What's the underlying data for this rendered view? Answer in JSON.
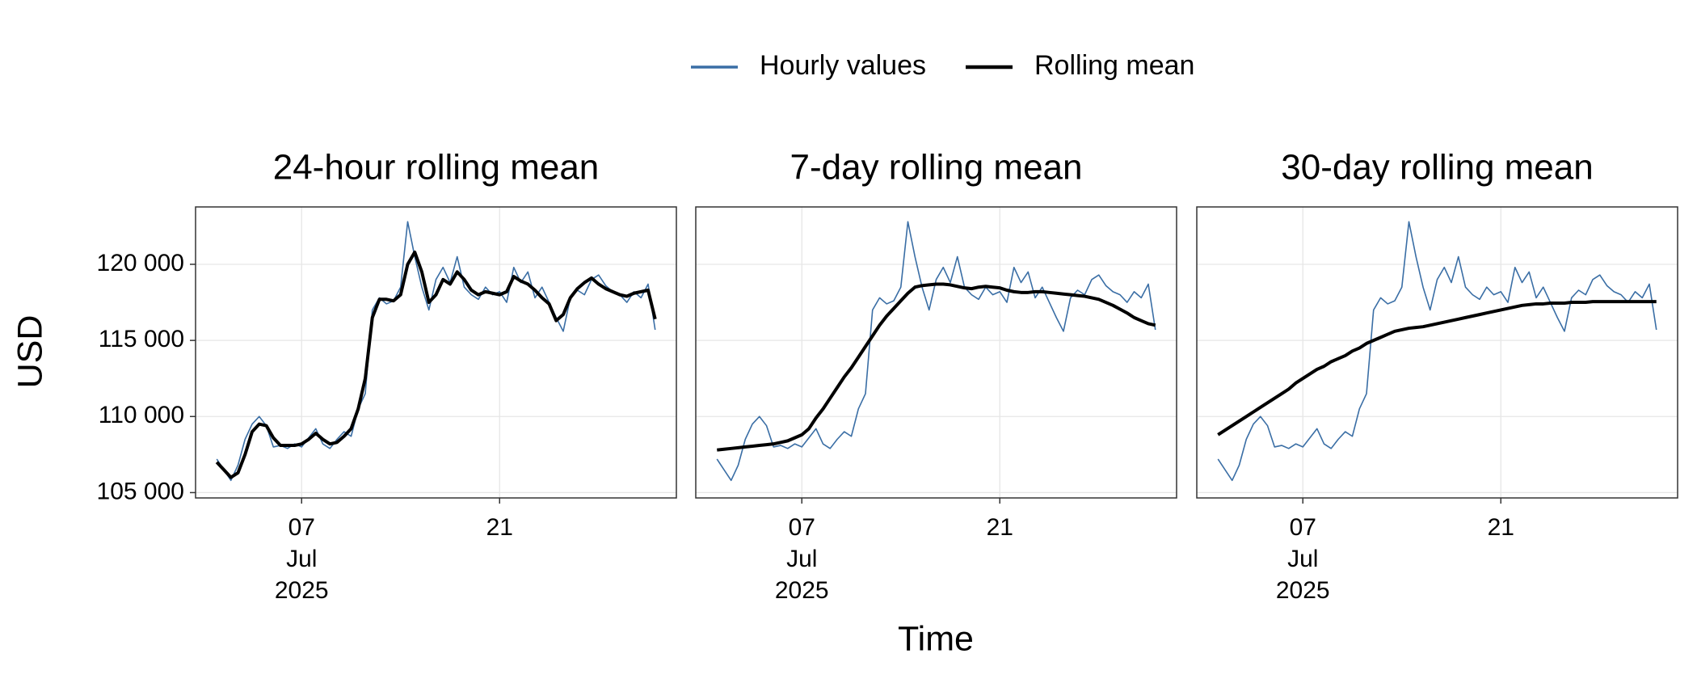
{
  "legend_position": "top",
  "x_label": "Time",
  "y_label": "USD",
  "chart_data": [
    {
      "type": "line",
      "title": "24-hour rolling mean",
      "grid": true,
      "x": [
        1,
        1.5,
        2,
        2.5,
        3,
        3.5,
        4,
        4.5,
        5,
        5.5,
        6,
        6.5,
        7,
        7.5,
        8,
        8.5,
        9,
        9.5,
        10,
        10.5,
        11,
        11.5,
        12,
        12.5,
        13,
        13.5,
        14,
        14.5,
        15,
        15.5,
        16,
        16.5,
        17,
        17.5,
        18,
        18.5,
        19,
        19.5,
        20,
        20.5,
        21,
        21.5,
        22,
        22.5,
        23,
        23.5,
        24,
        24.5,
        25,
        25.5,
        26,
        26.5,
        27,
        27.5,
        28,
        28.5,
        29,
        29.5,
        30,
        30.5,
        31,
        31.5,
        32
      ],
      "series": [
        {
          "name": "Hourly values",
          "color": "#3a6ea5",
          "values": [
            107200,
            106500,
            105800,
            106800,
            108500,
            109500,
            110000,
            109400,
            108000,
            108100,
            107900,
            108200,
            108000,
            108600,
            109200,
            108200,
            107900,
            108500,
            109000,
            108700,
            110500,
            111500,
            117000,
            117800,
            117400,
            117600,
            118500,
            122800,
            120500,
            118500,
            117000,
            119000,
            119800,
            118800,
            120500,
            118500,
            118000,
            117700,
            118500,
            118000,
            118200,
            117500,
            119800,
            118800,
            119500,
            117800,
            118500,
            117500,
            116500,
            115600,
            117800,
            118300,
            118000,
            119000,
            119300,
            118600,
            118200,
            118000,
            117500,
            118200,
            117800,
            118700,
            115700
          ]
        },
        {
          "name": "Rolling mean",
          "color": "#000000",
          "values": [
            107000,
            106500,
            106000,
            106300,
            107500,
            109000,
            109500,
            109400,
            108600,
            108100,
            108100,
            108100,
            108200,
            108500,
            108900,
            108500,
            108200,
            108300,
            108700,
            109200,
            110500,
            112500,
            116500,
            117700,
            117700,
            117600,
            118000,
            120000,
            120800,
            119500,
            117500,
            118000,
            119000,
            118700,
            119500,
            119000,
            118300,
            118000,
            118200,
            118100,
            118000,
            118200,
            119200,
            118900,
            118700,
            118300,
            117800,
            117400,
            116300,
            116700,
            117800,
            118400,
            118800,
            119100,
            118700,
            118400,
            118200,
            118000,
            117900,
            118100,
            118200,
            118300,
            116400
          ]
        }
      ],
      "xlim": [
        -0.5,
        33.5
      ],
      "xticks": [
        {
          "value": 7,
          "label": "07\nJul\n2025"
        },
        21
      ],
      "ylim": [
        104650,
        123770
      ],
      "yticks": [
        {
          "value": 105000,
          "label": "105 000"
        },
        {
          "value": 110000,
          "label": "110 000"
        },
        {
          "value": 115000,
          "label": "115 000"
        },
        {
          "value": 120000,
          "label": "120 000"
        }
      ]
    },
    {
      "type": "line",
      "title": "7-day rolling mean",
      "grid": true,
      "x": [
        1,
        1.5,
        2,
        2.5,
        3,
        3.5,
        4,
        4.5,
        5,
        5.5,
        6,
        6.5,
        7,
        7.5,
        8,
        8.5,
        9,
        9.5,
        10,
        10.5,
        11,
        11.5,
        12,
        12.5,
        13,
        13.5,
        14,
        14.5,
        15,
        15.5,
        16,
        16.5,
        17,
        17.5,
        18,
        18.5,
        19,
        19.5,
        20,
        20.5,
        21,
        21.5,
        22,
        22.5,
        23,
        23.5,
        24,
        24.5,
        25,
        25.5,
        26,
        26.5,
        27,
        27.5,
        28,
        28.5,
        29,
        29.5,
        30,
        30.5,
        31,
        31.5,
        32
      ],
      "series": [
        {
          "name": "Hourly values",
          "color": "#3a6ea5",
          "values": [
            107200,
            106500,
            105800,
            106800,
            108500,
            109500,
            110000,
            109400,
            108000,
            108100,
            107900,
            108200,
            108000,
            108600,
            109200,
            108200,
            107900,
            108500,
            109000,
            108700,
            110500,
            111500,
            117000,
            117800,
            117400,
            117600,
            118500,
            122800,
            120500,
            118500,
            117000,
            119000,
            119800,
            118800,
            120500,
            118500,
            118000,
            117700,
            118500,
            118000,
            118200,
            117500,
            119800,
            118800,
            119500,
            117800,
            118500,
            117500,
            116500,
            115600,
            117800,
            118300,
            118000,
            119000,
            119300,
            118600,
            118200,
            118000,
            117500,
            118200,
            117800,
            118700,
            115700
          ]
        },
        {
          "name": "Rolling mean",
          "color": "#000000",
          "values": [
            107800,
            107850,
            107900,
            107950,
            108000,
            108050,
            108100,
            108150,
            108200,
            108300,
            108400,
            108600,
            108800,
            109200,
            109900,
            110500,
            111200,
            111900,
            112600,
            113200,
            113900,
            114600,
            115300,
            116000,
            116600,
            117100,
            117600,
            118100,
            118500,
            118600,
            118650,
            118700,
            118700,
            118650,
            118550,
            118450,
            118400,
            118500,
            118550,
            118500,
            118450,
            118300,
            118200,
            118150,
            118150,
            118200,
            118200,
            118150,
            118100,
            118050,
            118000,
            117950,
            117900,
            117800,
            117700,
            117500,
            117300,
            117050,
            116800,
            116500,
            116300,
            116100,
            116000
          ]
        }
      ],
      "xlim": [
        -0.5,
        33.5
      ],
      "xticks": [
        {
          "value": 7,
          "label": "07\nJul\n2025"
        },
        21
      ],
      "ylim": [
        104650,
        123770
      ],
      "yticks": [
        105000,
        110000,
        115000,
        120000
      ]
    },
    {
      "type": "line",
      "title": "30-day rolling mean",
      "grid": true,
      "x": [
        1,
        1.5,
        2,
        2.5,
        3,
        3.5,
        4,
        4.5,
        5,
        5.5,
        6,
        6.5,
        7,
        7.5,
        8,
        8.5,
        9,
        9.5,
        10,
        10.5,
        11,
        11.5,
        12,
        12.5,
        13,
        13.5,
        14,
        14.5,
        15,
        15.5,
        16,
        16.5,
        17,
        17.5,
        18,
        18.5,
        19,
        19.5,
        20,
        20.5,
        21,
        21.5,
        22,
        22.5,
        23,
        23.5,
        24,
        24.5,
        25,
        25.5,
        26,
        26.5,
        27,
        27.5,
        28,
        28.5,
        29,
        29.5,
        30,
        30.5,
        31,
        31.5,
        32
      ],
      "series": [
        {
          "name": "Hourly values",
          "color": "#3a6ea5",
          "values": [
            107200,
            106500,
            105800,
            106800,
            108500,
            109500,
            110000,
            109400,
            108000,
            108100,
            107900,
            108200,
            108000,
            108600,
            109200,
            108200,
            107900,
            108500,
            109000,
            108700,
            110500,
            111500,
            117000,
            117800,
            117400,
            117600,
            118500,
            122800,
            120500,
            118500,
            117000,
            119000,
            119800,
            118800,
            120500,
            118500,
            118000,
            117700,
            118500,
            118000,
            118200,
            117500,
            119800,
            118800,
            119500,
            117800,
            118500,
            117500,
            116500,
            115600,
            117800,
            118300,
            118000,
            119000,
            119300,
            118600,
            118200,
            118000,
            117500,
            118200,
            117800,
            118700,
            115700
          ]
        },
        {
          "name": "Rolling mean",
          "color": "#000000",
          "values": [
            108800,
            109100,
            109400,
            109700,
            110000,
            110300,
            110600,
            110900,
            111200,
            111500,
            111800,
            112200,
            112500,
            112800,
            113100,
            113300,
            113600,
            113800,
            114000,
            114300,
            114500,
            114800,
            115000,
            115200,
            115400,
            115600,
            115700,
            115800,
            115850,
            115900,
            116000,
            116100,
            116200,
            116300,
            116400,
            116500,
            116600,
            116700,
            116800,
            116900,
            117000,
            117100,
            117200,
            117300,
            117350,
            117400,
            117400,
            117450,
            117450,
            117450,
            117500,
            117500,
            117500,
            117550,
            117550,
            117550,
            117550,
            117550,
            117550,
            117550,
            117550,
            117550,
            117550
          ]
        }
      ],
      "xlim": [
        -0.5,
        33.5
      ],
      "xticks": [
        {
          "value": 7,
          "label": "07\nJul\n2025"
        },
        21
      ],
      "ylim": [
        104650,
        123770
      ],
      "yticks": [
        105000,
        110000,
        115000,
        120000
      ]
    }
  ]
}
